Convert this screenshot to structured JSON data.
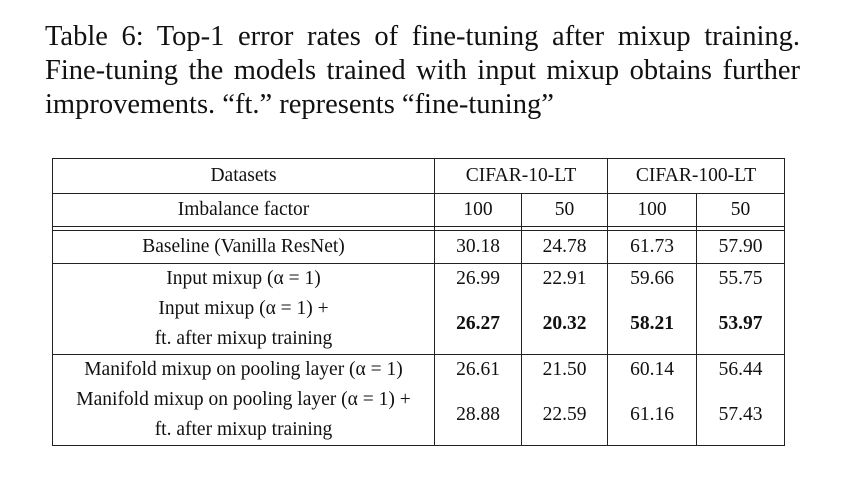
{
  "caption": {
    "line1": "Table 6: Top-1 error rates of fine-tuning after mixup training.",
    "line2": "Fine-tuning the models trained with input mixup obtains",
    "line3": "further improvements. “ft.” represents “fine-tuning”"
  },
  "table": {
    "header": {
      "datasets": "Datasets",
      "cifar10": "CIFAR-10-LT",
      "cifar100": "CIFAR-100-LT",
      "imbalance": "Imbalance factor",
      "f100a": "100",
      "f50a": "50",
      "f100b": "100",
      "f50b": "50"
    },
    "rows": [
      {
        "label": "Baseline (Vanilla ResNet)",
        "values": [
          "30.18",
          "24.78",
          "61.73",
          "57.90"
        ]
      },
      {
        "label": "Input mixup (α = 1)",
        "values": [
          "26.99",
          "22.91",
          "59.66",
          "55.75"
        ]
      },
      {
        "label_line1": "Input mixup (α = 1) +",
        "label_line2": "ft. after mixup training",
        "values": [
          "26.27",
          "20.32",
          "58.21",
          "53.97"
        ]
      },
      {
        "label": "Manifold mixup on pooling layer (α = 1)",
        "values": [
          "26.61",
          "21.50",
          "60.14",
          "56.44"
        ]
      },
      {
        "label_line1": "Manifold mixup on pooling layer (α = 1) +",
        "label_line2": "ft. after mixup training",
        "values": [
          "28.88",
          "22.59",
          "61.16",
          "57.43"
        ]
      }
    ]
  }
}
